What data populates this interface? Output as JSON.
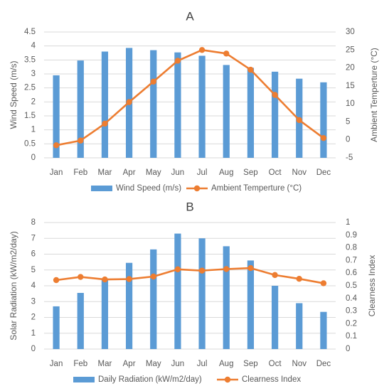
{
  "chart_data": [
    {
      "panel_label": "A",
      "type": "bar+line",
      "categories": [
        "Jan",
        "Feb",
        "Mar",
        "Apr",
        "May",
        "Jun",
        "Jul",
        "Aug",
        "Sep",
        "Oct",
        "Nov",
        "Dec"
      ],
      "category_labels": [
        "Jan",
        "Feb",
        "Mar",
        "Apr",
        "May",
        "Jun",
        "Jul",
        "Aug",
        "Sep",
        "Oct",
        "Nov",
        "Dec"
      ],
      "series": [
        {
          "name": "Wind Speed (m/s)",
          "kind": "bar",
          "axis": "left",
          "values": [
            2.95,
            3.48,
            3.8,
            3.93,
            3.85,
            3.77,
            3.65,
            3.32,
            3.22,
            3.08,
            2.83,
            2.7
          ]
        },
        {
          "name": "Ambient Temperture (°C)",
          "kind": "line",
          "axis": "right",
          "values": [
            -1.5,
            -0.2,
            4.5,
            10.5,
            16.2,
            22.0,
            25.0,
            24.0,
            19.5,
            12.5,
            5.5,
            0.5
          ]
        }
      ],
      "ylabel": "Wind Speed (m/s)",
      "y2label": "Ambient Temperture (°C)",
      "ylim": [
        0,
        4.5
      ],
      "y_ticks": [
        "0",
        "0.5",
        "1",
        "1.5",
        "2",
        "2.5",
        "3",
        "3.5",
        "4",
        "4.5"
      ],
      "y2lim": [
        -5,
        30
      ],
      "y2_ticks": [
        "-5",
        "0",
        "5",
        "10",
        "15",
        "20",
        "25",
        "30"
      ],
      "grid": true,
      "legend_position": "bottom"
    },
    {
      "panel_label": "B",
      "type": "bar+line",
      "categories": [
        "Jan",
        "Feb",
        "Mar",
        "Apr",
        "May",
        "Jun",
        "Jul",
        "Aug",
        "Sep",
        "Oct",
        "Nov",
        "Dec"
      ],
      "category_labels": [
        "Jan",
        "Feb",
        "Mar",
        "Apr",
        "May",
        "Jun",
        "Jul",
        "Aug",
        "Sep",
        "Oct",
        "Nov",
        "Dec"
      ],
      "series": [
        {
          "name": "Daily Radiation (kW/m2/day)",
          "kind": "bar",
          "axis": "left",
          "values": [
            2.7,
            3.55,
            4.4,
            5.45,
            6.3,
            7.3,
            7.0,
            6.5,
            5.6,
            4.0,
            2.9,
            2.35
          ]
        },
        {
          "name": "Clearness Index",
          "kind": "line",
          "axis": "right",
          "values": [
            0.545,
            0.57,
            0.55,
            0.553,
            0.573,
            0.63,
            0.62,
            0.632,
            0.64,
            0.585,
            0.555,
            0.52
          ]
        }
      ],
      "ylabel": "Solar Radiation (kW/m2/day)",
      "y2label": "Clearness Index",
      "ylim": [
        0,
        8
      ],
      "y_ticks": [
        "0",
        "1",
        "2",
        "3",
        "4",
        "5",
        "6",
        "7",
        "8"
      ],
      "y2lim": [
        0,
        1
      ],
      "y2_ticks": [
        "0",
        "0.1",
        "0.2",
        "0.3",
        "0.4",
        "0.5",
        "0.6",
        "0.7",
        "0.8",
        "0.9",
        "1"
      ],
      "grid": true,
      "legend_position": "bottom"
    }
  ],
  "colors": {
    "bar": "#5B9BD5",
    "line": "#ED7D31",
    "grid": "#D9D9D9",
    "text": "#595959"
  }
}
